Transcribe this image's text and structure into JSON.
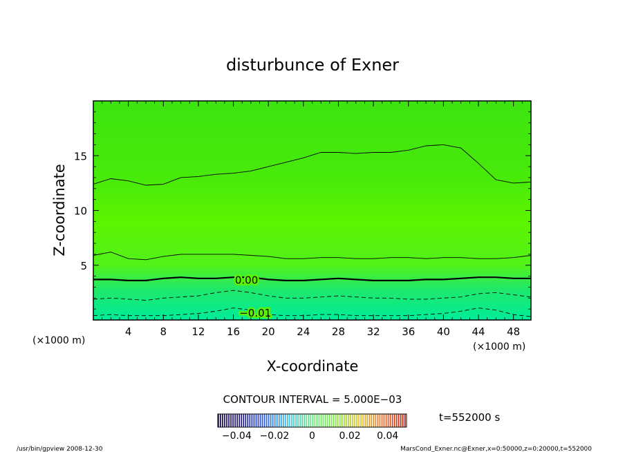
{
  "chart_data": {
    "type": "contour",
    "title": "disturbunce of Exner",
    "xlabel": "X-coordinate",
    "ylabel": "Z-coordinate",
    "x_unit": "(×1000 m)",
    "x_unit_right": "(×1000 m)",
    "xlim": [
      0,
      50
    ],
    "ylim": [
      0,
      20
    ],
    "x_ticks": [
      4,
      8,
      12,
      16,
      20,
      24,
      28,
      32,
      36,
      40,
      44,
      48
    ],
    "y_ticks": [
      5,
      10,
      15
    ],
    "contour_interval_label": "CONTOUR INTERVAL = 5.000E−03",
    "contour_labels": [
      {
        "text": "0.00",
        "x": 17.5,
        "z": 3.7
      },
      {
        "text": "−0.01",
        "x": 18.5,
        "z": 0.7
      }
    ],
    "contours": [
      {
        "level": 0.005,
        "style": "thin",
        "x": [
          0,
          2,
          4,
          6,
          8,
          10,
          12,
          14,
          16,
          18,
          20,
          22,
          24,
          26,
          28,
          30,
          32,
          34,
          36,
          38,
          40,
          42,
          44,
          46,
          48,
          50
        ],
        "z": [
          12.4,
          12.9,
          12.7,
          12.3,
          12.4,
          13.0,
          13.1,
          13.3,
          13.4,
          13.6,
          14.0,
          14.4,
          14.8,
          15.3,
          15.3,
          15.2,
          15.3,
          15.3,
          15.5,
          15.9,
          16.0,
          15.7,
          14.3,
          12.8,
          12.5,
          12.6
        ]
      },
      {
        "level": 0.0,
        "style": "thin",
        "x": [
          0,
          2,
          4,
          6,
          8,
          10,
          12,
          14,
          16,
          18,
          20,
          22,
          24,
          26,
          28,
          30,
          32,
          34,
          36,
          38,
          40,
          42,
          44,
          46,
          48,
          50
        ],
        "z": [
          5.9,
          6.2,
          5.6,
          5.5,
          5.8,
          6.0,
          6.0,
          6.0,
          6.0,
          5.9,
          5.8,
          5.6,
          5.6,
          5.7,
          5.7,
          5.6,
          5.6,
          5.7,
          5.7,
          5.6,
          5.7,
          5.7,
          5.6,
          5.6,
          5.7,
          5.9
        ]
      },
      {
        "level": 0.0,
        "style": "bold",
        "x": [
          0,
          2,
          4,
          6,
          8,
          10,
          12,
          14,
          16,
          18,
          20,
          22,
          24,
          26,
          28,
          30,
          32,
          34,
          36,
          38,
          40,
          42,
          44,
          46,
          48,
          50
        ],
        "z": [
          3.7,
          3.7,
          3.6,
          3.6,
          3.8,
          3.9,
          3.8,
          3.8,
          3.9,
          3.9,
          3.7,
          3.6,
          3.6,
          3.7,
          3.8,
          3.7,
          3.6,
          3.6,
          3.6,
          3.7,
          3.7,
          3.8,
          3.9,
          3.9,
          3.8,
          3.8
        ]
      },
      {
        "level": -0.005,
        "style": "dashed",
        "x": [
          0,
          2,
          4,
          6,
          8,
          10,
          12,
          14,
          16,
          18,
          20,
          22,
          24,
          26,
          28,
          30,
          32,
          34,
          36,
          38,
          40,
          42,
          44,
          46,
          48,
          50
        ],
        "z": [
          1.9,
          2.0,
          1.9,
          1.8,
          2.0,
          2.1,
          2.2,
          2.5,
          2.7,
          2.5,
          2.2,
          2.0,
          2.0,
          2.1,
          2.2,
          2.1,
          2.0,
          2.0,
          1.9,
          1.9,
          2.0,
          2.1,
          2.4,
          2.5,
          2.3,
          2.1
        ]
      },
      {
        "level": -0.01,
        "style": "dashed",
        "x": [
          0,
          2,
          4,
          6,
          8,
          10,
          12,
          14,
          16,
          18,
          20,
          22,
          24,
          26,
          28,
          30,
          32,
          34,
          36,
          38,
          40,
          42,
          44,
          46,
          48,
          50
        ],
        "z": [
          0.4,
          0.5,
          0.4,
          0.4,
          0.4,
          0.5,
          0.6,
          0.8,
          1.1,
          0.9,
          0.5,
          0.4,
          0.4,
          0.5,
          0.5,
          0.4,
          0.4,
          0.4,
          0.4,
          0.5,
          0.6,
          0.8,
          1.1,
          0.9,
          0.5,
          0.3
        ]
      }
    ],
    "colorbar": {
      "ticks": [
        "−0.04",
        "−0.02",
        "0",
        "0.02",
        "0.04"
      ],
      "range": [
        -0.05,
        0.05
      ]
    },
    "colors": {
      "top": "#3de410",
      "mid": "#5cf400",
      "low": "#20e86a",
      "bottom": "#00ec9a"
    }
  },
  "time_label": "t=552000 s",
  "footer_left": "/usr/bin/gpview   2008-12-30",
  "footer_right": "MarsCond_Exner.nc@Exner,x=0:50000,z=0:20000,t=552000"
}
